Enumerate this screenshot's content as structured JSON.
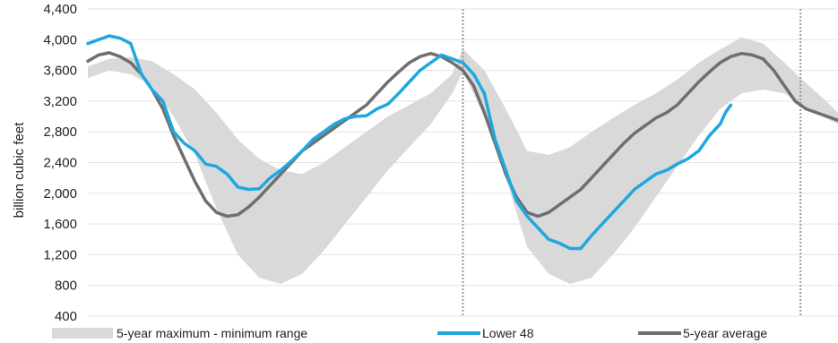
{
  "chart_data": {
    "type": "area",
    "title": "",
    "xlabel": "",
    "ylabel": "billion cubic feet",
    "ylim": [
      400,
      4400
    ],
    "yticks": [
      400,
      800,
      1200,
      1600,
      2000,
      2400,
      2800,
      3200,
      3600,
      4000,
      4400
    ],
    "ytick_labels": [
      "400",
      "800",
      "1,200",
      "1,600",
      "2,000",
      "2,400",
      "2,800",
      "3,200",
      "3,600",
      "4,000",
      "4,400"
    ],
    "x_range": [
      0,
      140
    ],
    "gridlines": "horizontal",
    "vertical_markers": [
      70,
      133
    ],
    "legend_position": "bottom",
    "series": [
      {
        "name": "5-year maximum - minimum range",
        "kind": "band",
        "color": "#d9d9d9",
        "x": [
          0,
          4,
          8,
          12,
          16,
          20,
          24,
          28,
          32,
          36,
          40,
          44,
          48,
          52,
          56,
          60,
          64,
          68,
          70,
          74,
          78,
          82,
          86,
          90,
          94,
          98,
          102,
          106,
          110,
          114,
          118,
          122,
          126,
          130,
          133,
          137,
          140
        ],
        "upper": [
          3650,
          3750,
          3770,
          3720,
          3550,
          3350,
          3050,
          2700,
          2450,
          2300,
          2250,
          2400,
          2600,
          2800,
          3000,
          3150,
          3300,
          3550,
          3880,
          3600,
          3100,
          2550,
          2500,
          2600,
          2800,
          2980,
          3150,
          3300,
          3480,
          3700,
          3870,
          4030,
          3950,
          3700,
          3500,
          3250,
          3050
        ],
        "lower": [
          3500,
          3600,
          3550,
          3400,
          3000,
          2500,
          1800,
          1200,
          900,
          820,
          950,
          1250,
          1600,
          1950,
          2300,
          2600,
          2900,
          3300,
          3580,
          3000,
          2200,
          1300,
          950,
          820,
          900,
          1200,
          1550,
          1950,
          2350,
          2750,
          3100,
          3300,
          3350,
          3300,
          3150,
          3000,
          2900
        ]
      },
      {
        "name": "Lower 48",
        "kind": "line",
        "color": "#1ea8e0",
        "x": [
          0,
          2,
          4,
          6,
          8,
          10,
          12,
          14,
          16,
          18,
          20,
          22,
          24,
          26,
          28,
          30,
          32,
          34,
          36,
          38,
          40,
          42,
          44,
          46,
          48,
          50,
          52,
          54,
          56,
          58,
          60,
          62,
          64,
          66,
          68,
          70,
          72,
          74,
          76,
          78,
          80,
          82,
          84,
          86,
          88,
          90,
          92,
          94,
          96,
          98,
          100,
          102,
          104,
          106,
          108,
          110,
          112,
          114,
          116,
          118,
          119,
          120
        ],
        "y": [
          3950,
          4000,
          4050,
          4020,
          3950,
          3550,
          3350,
          3200,
          2800,
          2650,
          2550,
          2380,
          2350,
          2250,
          2080,
          2050,
          2060,
          2200,
          2300,
          2420,
          2550,
          2700,
          2800,
          2900,
          2970,
          3000,
          3010,
          3100,
          3160,
          3300,
          3450,
          3600,
          3700,
          3800,
          3750,
          3700,
          3550,
          3300,
          2700,
          2300,
          1900,
          1700,
          1550,
          1400,
          1350,
          1280,
          1280,
          1450,
          1600,
          1750,
          1900,
          2050,
          2150,
          2250,
          2300,
          2380,
          2450,
          2550,
          2750,
          2900,
          3050,
          3150
        ]
      },
      {
        "name": "5-year average",
        "kind": "line",
        "color": "#6f6f6f",
        "x": [
          0,
          2,
          4,
          6,
          8,
          10,
          12,
          14,
          16,
          18,
          20,
          22,
          24,
          26,
          28,
          30,
          32,
          34,
          36,
          38,
          40,
          42,
          44,
          46,
          48,
          50,
          52,
          54,
          56,
          58,
          60,
          62,
          64,
          66,
          68,
          70,
          72,
          74,
          76,
          78,
          80,
          82,
          84,
          86,
          88,
          90,
          92,
          94,
          96,
          98,
          100,
          102,
          104,
          106,
          108,
          110,
          112,
          114,
          116,
          118,
          120,
          122,
          124,
          126,
          128,
          130,
          132,
          134,
          136,
          138,
          140
        ],
        "y": [
          3720,
          3800,
          3830,
          3780,
          3700,
          3550,
          3350,
          3100,
          2750,
          2450,
          2150,
          1900,
          1750,
          1700,
          1720,
          1820,
          1950,
          2100,
          2250,
          2400,
          2550,
          2650,
          2750,
          2850,
          2950,
          3050,
          3150,
          3300,
          3450,
          3580,
          3700,
          3780,
          3820,
          3780,
          3700,
          3600,
          3400,
          3050,
          2650,
          2250,
          1950,
          1750,
          1700,
          1750,
          1850,
          1950,
          2050,
          2200,
          2350,
          2500,
          2650,
          2780,
          2880,
          2980,
          3050,
          3150,
          3300,
          3450,
          3580,
          3700,
          3780,
          3820,
          3800,
          3750,
          3600,
          3400,
          3200,
          3100,
          3050,
          3000,
          2950
        ]
      }
    ]
  }
}
